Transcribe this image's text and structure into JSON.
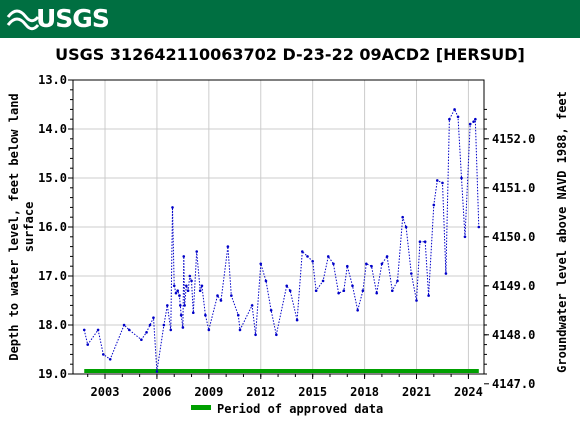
{
  "header": {
    "agency": "USGS",
    "brand_color": "#006f41"
  },
  "chart_data": {
    "type": "line",
    "title": "USGS 312642110063702 D-23-22 09ACD2 [HERSUD]",
    "ylabel_left_lines": [
      "Depth to water level, feet below land",
      "surface"
    ],
    "ylabel_right": "Groundwater level above NAVD 1988, feet",
    "x_ticks": [
      "2003",
      "2006",
      "2009",
      "2012",
      "2015",
      "2018",
      "2021",
      "2024"
    ],
    "y_left_ticks": [
      "13.0",
      "14.0",
      "15.0",
      "16.0",
      "17.0",
      "18.0",
      "19.0"
    ],
    "y_right_ticks": [
      "4152.0",
      "4151.0",
      "4150.0",
      "4149.0",
      "4148.0",
      "4147.0"
    ],
    "xlim": [
      2001.15,
      2024.9
    ],
    "ylim_left": [
      13.0,
      19.0
    ],
    "y_inverted": true,
    "datum_offset": 4166.2,
    "grid": true,
    "series": [
      {
        "name": "Depth to water level",
        "color": "#0000c8",
        "style": "dotted-with-markers",
        "x": [
          2001.8,
          2002.0,
          2002.6,
          2002.9,
          2003.3,
          2004.1,
          2004.4,
          2005.1,
          2005.4,
          2005.6,
          2005.8,
          2006.0,
          2006.4,
          2006.6,
          2006.8,
          2006.9,
          2007.0,
          2007.1,
          2007.2,
          2007.3,
          2007.35,
          2007.4,
          2007.5,
          2007.55,
          2007.6,
          2007.7,
          2007.8,
          2007.9,
          2008.0,
          2008.1,
          2008.3,
          2008.5,
          2008.6,
          2008.8,
          2009.0,
          2009.5,
          2009.7,
          2010.1,
          2010.3,
          2010.7,
          2010.8,
          2011.5,
          2011.7,
          2012.0,
          2012.3,
          2012.6,
          2012.9,
          2013.5,
          2013.7,
          2014.1,
          2014.4,
          2014.7,
          2015.0,
          2015.2,
          2015.6,
          2015.9,
          2016.2,
          2016.5,
          2016.8,
          2017.0,
          2017.3,
          2017.6,
          2017.9,
          2018.1,
          2018.4,
          2018.7,
          2019.0,
          2019.3,
          2019.6,
          2019.9,
          2020.2,
          2020.4,
          2020.7,
          2021.0,
          2021.2,
          2021.5,
          2021.7,
          2022.0,
          2022.2,
          2022.5,
          2022.7,
          2022.9,
          2023.2,
          2023.4,
          2023.6,
          2023.8,
          2024.1,
          2024.3,
          2024.4,
          2024.6
        ],
        "y": [
          18.1,
          18.4,
          18.1,
          18.6,
          18.7,
          18.0,
          18.1,
          18.3,
          18.15,
          18.0,
          17.85,
          18.95,
          18.0,
          17.6,
          18.1,
          15.6,
          17.2,
          17.35,
          17.3,
          17.4,
          17.6,
          17.8,
          18.05,
          16.6,
          17.6,
          17.2,
          17.3,
          17.0,
          17.1,
          17.75,
          16.5,
          17.3,
          17.2,
          17.8,
          18.1,
          17.4,
          17.5,
          16.4,
          17.4,
          17.8,
          18.1,
          17.6,
          18.2,
          16.75,
          17.1,
          17.7,
          18.2,
          17.2,
          17.3,
          17.9,
          16.5,
          16.6,
          16.7,
          17.3,
          17.1,
          16.6,
          16.75,
          17.35,
          17.3,
          16.8,
          17.2,
          17.7,
          17.3,
          16.75,
          16.8,
          17.35,
          16.75,
          16.6,
          17.3,
          17.1,
          15.8,
          16.0,
          16.95,
          17.5,
          16.3,
          16.3,
          17.4,
          15.55,
          15.05,
          15.1,
          16.95,
          13.8,
          13.6,
          13.75,
          15.0,
          16.2,
          13.9,
          13.85,
          13.8,
          16.0
        ]
      }
    ],
    "approved_band_range": [
      2001.8,
      2024.6
    ]
  },
  "legend": {
    "label": "Period of approved data",
    "color": "#00a000"
  }
}
